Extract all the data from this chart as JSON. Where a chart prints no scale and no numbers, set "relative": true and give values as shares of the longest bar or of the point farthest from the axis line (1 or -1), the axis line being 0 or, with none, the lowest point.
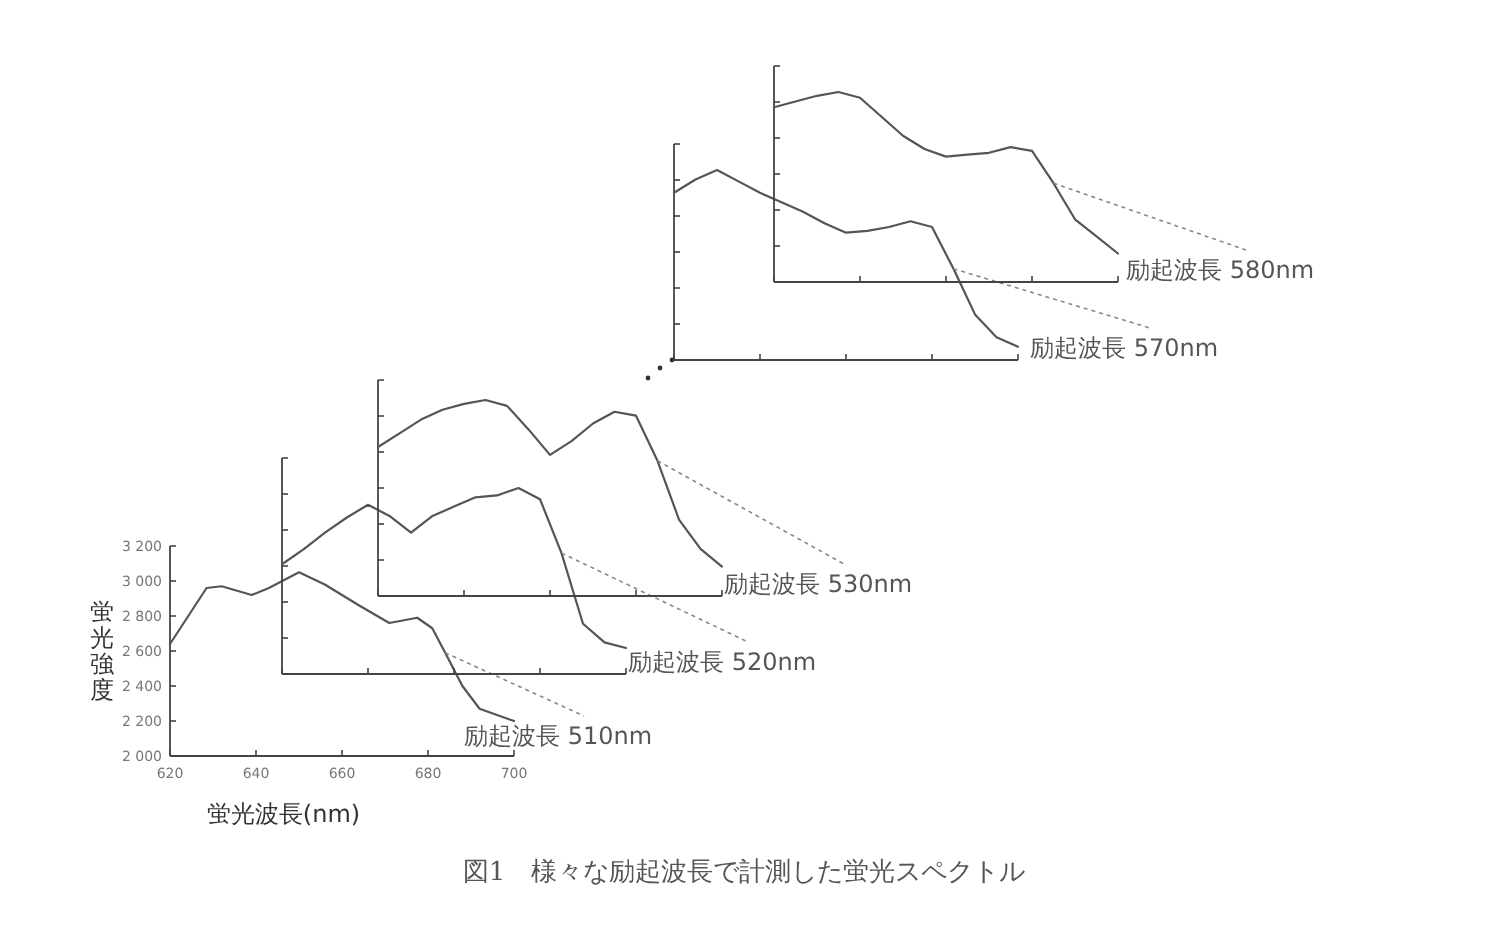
{
  "chart_data": [
    {
      "type": "line",
      "xlabel": "蛍光波長(nm)",
      "ylabel": "蛍光強度",
      "annotations": [
        "図1　様々な励起波長で計測した蛍光スペクトル"
      ],
      "xlim": [
        620,
        700
      ],
      "ylim": [
        2000,
        3200
      ],
      "xticks": [
        620,
        640,
        660,
        680,
        700
      ],
      "yticks": [
        {
          "value": 2000,
          "label": "2 000"
        },
        {
          "value": 2200,
          "label": "2 200"
        },
        {
          "value": 2400,
          "label": "2 400"
        },
        {
          "value": 2600,
          "label": "2 600"
        },
        {
          "value": 2800,
          "label": "2 800"
        },
        {
          "value": 3000,
          "label": "3 000"
        },
        {
          "value": 3200,
          "label": "3 200"
        }
      ],
      "series": [
        {
          "name": "励起波長 510nm",
          "color": "#555555",
          "x": [
            620,
            628.5,
            632,
            639,
            643,
            650,
            656,
            664,
            671,
            677.5,
            681,
            684,
            688,
            692,
            700
          ],
          "values": [
            2640,
            2960,
            2970,
            2920,
            2960,
            3050,
            2980,
            2860,
            2760,
            2790,
            2730,
            2590,
            2400,
            2270,
            2200
          ]
        }
      ]
    },
    {
      "type": "line",
      "relative": true,
      "categories": [
        null,
        null,
        null,
        null,
        null,
        null,
        null,
        null,
        null,
        null,
        null,
        null,
        null,
        null,
        null,
        null,
        null
      ],
      "series": [
        {
          "name": "励起波長 520nm",
          "color": "#555555",
          "values": [
            0.59,
            0.67,
            0.76,
            0.84,
            0.91,
            0.85,
            0.76,
            0.85,
            0.9,
            0.95,
            0.96,
            1.0,
            0.94,
            0.65,
            0.27,
            0.17,
            0.14
          ]
        }
      ]
    },
    {
      "type": "line",
      "relative": true,
      "categories": [
        null,
        null,
        null,
        null,
        null,
        null,
        null,
        null,
        null,
        null,
        null,
        null,
        null,
        null,
        null,
        null,
        null
      ],
      "series": [
        {
          "name": "励起波長 530nm",
          "color": "#555555",
          "values": [
            0.76,
            0.83,
            0.9,
            0.95,
            0.98,
            1.0,
            0.97,
            0.85,
            0.72,
            0.79,
            0.88,
            0.94,
            0.92,
            0.69,
            0.39,
            0.24,
            0.15
          ]
        }
      ]
    },
    {
      "type": "line",
      "relative": true,
      "categories": [
        null,
        null,
        null,
        null,
        null,
        null,
        null,
        null,
        null,
        null,
        null,
        null,
        null,
        null,
        null,
        null,
        null
      ],
      "series": [
        {
          "name": "励起波長 570nm",
          "color": "#555555",
          "values": [
            0.88,
            0.95,
            1.0,
            0.94,
            0.88,
            0.83,
            0.78,
            0.72,
            0.67,
            0.68,
            0.7,
            0.73,
            0.7,
            0.48,
            0.24,
            0.12,
            0.07
          ]
        }
      ]
    },
    {
      "type": "line",
      "relative": true,
      "categories": [
        null,
        null,
        null,
        null,
        null,
        null,
        null,
        null,
        null,
        null,
        null,
        null,
        null,
        null,
        null,
        null,
        null
      ],
      "series": [
        {
          "name": "励起波長 580nm",
          "color": "#555555",
          "values": [
            0.92,
            0.95,
            0.98,
            1.0,
            0.97,
            0.87,
            0.77,
            0.7,
            0.66,
            0.67,
            0.68,
            0.71,
            0.69,
            0.52,
            0.33,
            0.24,
            0.15
          ]
        }
      ]
    }
  ]
}
